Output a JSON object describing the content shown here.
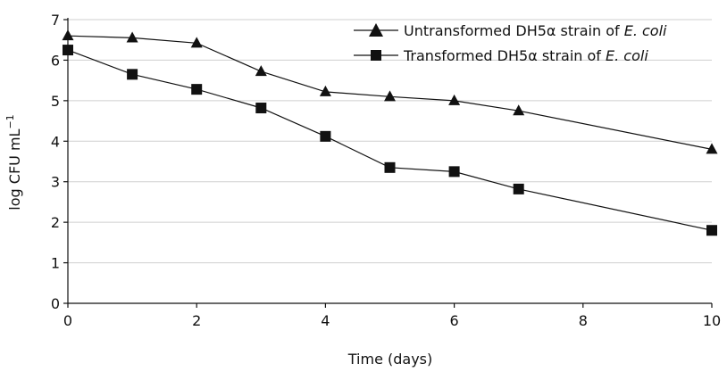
{
  "chart_data": {
    "type": "line",
    "xlabel": "Time (days)",
    "ylabel": "log CFU mL",
    "ylabel_superscript": "−1",
    "xlim": [
      0,
      10
    ],
    "ylim": [
      0,
      7
    ],
    "xticks": [
      0,
      2,
      4,
      6,
      8,
      10
    ],
    "yticks": [
      0,
      1,
      2,
      3,
      4,
      5,
      6,
      7
    ],
    "grid": "horizontal",
    "legend_position": "top-right",
    "series": [
      {
        "name": "Untransformed DH5α strain of E. coli",
        "legend_prefix": "Untransformed DH5α strain of ",
        "legend_italic": "E. coli",
        "marker": "triangle",
        "color": "#111111",
        "x": [
          0,
          1,
          2,
          3,
          4,
          5,
          6,
          7,
          10
        ],
        "y": [
          6.6,
          6.55,
          6.42,
          5.72,
          5.22,
          5.1,
          5.0,
          4.75,
          3.8
        ]
      },
      {
        "name": "Transformed DH5α strain of E. coli",
        "legend_prefix": "Transformed DH5α strain of ",
        "legend_italic": "E. coli",
        "marker": "square",
        "color": "#111111",
        "x": [
          0,
          1,
          2,
          3,
          4,
          5,
          6,
          7,
          10
        ],
        "y": [
          6.25,
          5.65,
          5.28,
          4.82,
          4.12,
          3.35,
          3.25,
          2.82,
          1.8
        ]
      }
    ]
  }
}
